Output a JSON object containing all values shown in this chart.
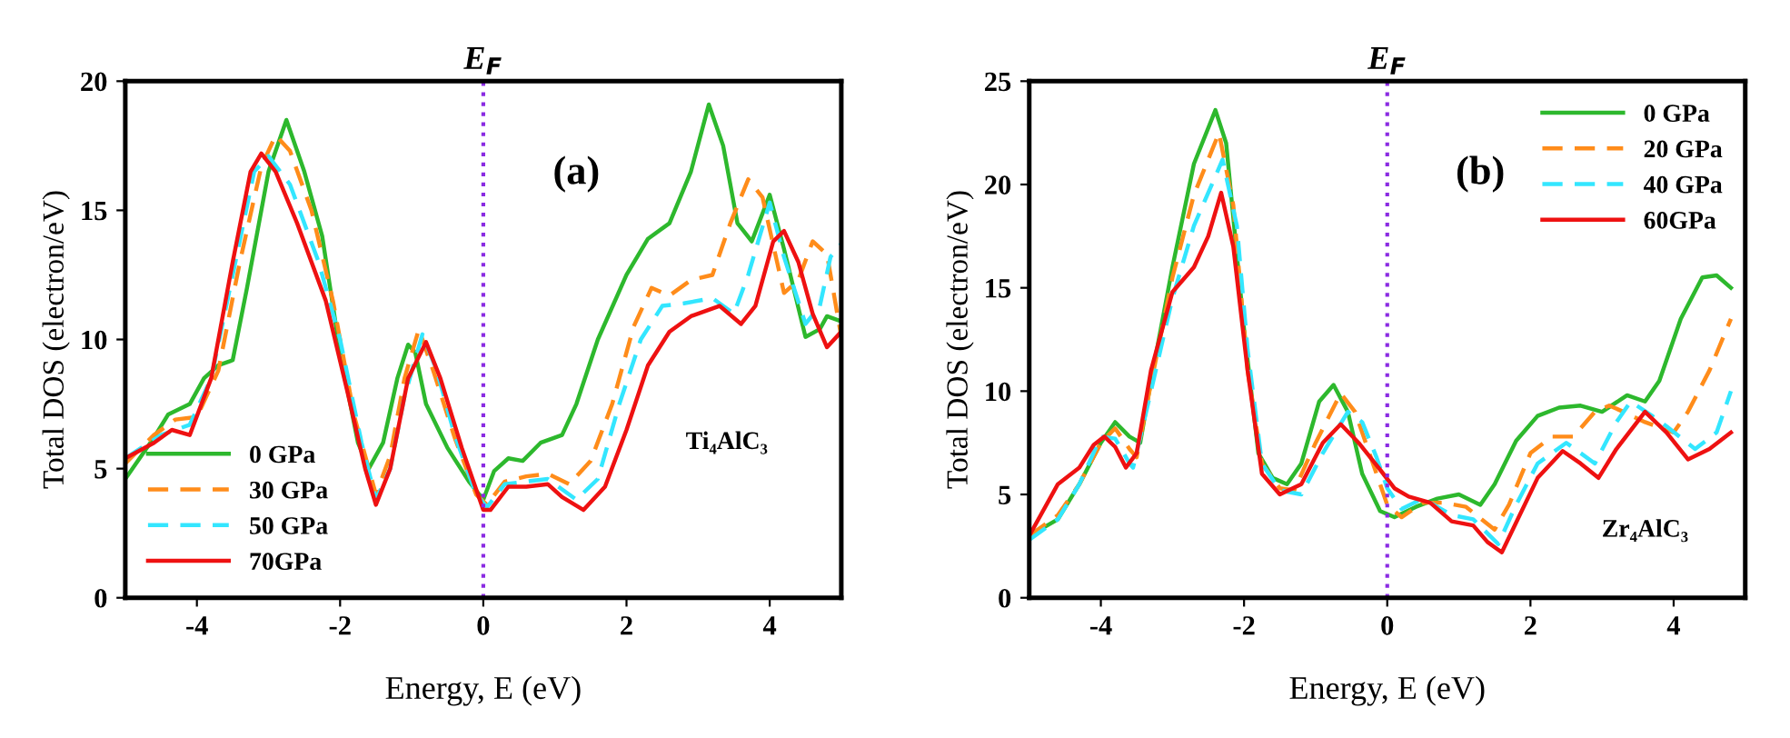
{
  "chart_data": [
    {
      "type": "line",
      "xlabel": "Energy, E (eV)",
      "ylabel": "Total DOS (electron/eV)",
      "xlim": [
        -5,
        5
      ],
      "xticks": [
        -4,
        -2,
        0,
        2,
        4
      ],
      "ylim": [
        0,
        20
      ],
      "yticks": [
        0,
        5,
        10,
        15,
        20
      ],
      "grid": false,
      "legend": "bottom left",
      "annotations": [
        "(a)",
        "Ti₄AlC₃"
      ],
      "ref_lines": [
        {
          "axis": "x",
          "value": 0,
          "label": "E$_{F}$",
          "color": "#8a2be2",
          "line_style": "dotted"
        }
      ],
      "series": [
        {
          "name": "0 GPa",
          "color": "#2db82d",
          "line_style": "solid",
          "x": [
            -5,
            -4.6,
            -4.4,
            -4.1,
            -3.9,
            -3.7,
            -3.5,
            -3.3,
            -3.0,
            -2.75,
            -2.5,
            -2.25,
            -2.0,
            -1.75,
            -1.6,
            -1.4,
            -1.2,
            -1.05,
            -0.95,
            -0.8,
            -0.5,
            -0.2,
            0,
            0.15,
            0.35,
            0.55,
            0.8,
            1.1,
            1.3,
            1.6,
            2.0,
            2.3,
            2.6,
            2.9,
            3.15,
            3.35,
            3.55,
            3.75,
            4.0,
            4.2,
            4.5,
            4.7,
            4.8,
            5
          ],
          "values": [
            4.6,
            6.2,
            7.1,
            7.5,
            8.5,
            9.0,
            9.2,
            12,
            16.5,
            18.5,
            16.5,
            14,
            9.5,
            6.0,
            5.0,
            6.0,
            8.5,
            9.8,
            9.5,
            7.5,
            5.8,
            4.5,
            3.8,
            4.9,
            5.4,
            5.3,
            6.0,
            6.3,
            7.5,
            10,
            12.5,
            13.9,
            14.5,
            16.5,
            19.1,
            17.5,
            14.5,
            13.8,
            15.6,
            13.5,
            10.1,
            10.4,
            10.9,
            10.7
          ]
        },
        {
          "name": "30 GPa",
          "color": "#ff8c1a",
          "line_style": "dashed",
          "x": [
            -5,
            -4.6,
            -4.3,
            -4.0,
            -3.7,
            -3.4,
            -3.1,
            -2.9,
            -2.7,
            -2.4,
            -2.1,
            -1.8,
            -1.5,
            -1.3,
            -1.1,
            -0.9,
            -0.7,
            -0.4,
            -0.1,
            0.05,
            0.3,
            0.6,
            0.9,
            1.2,
            1.5,
            1.8,
            2.1,
            2.35,
            2.6,
            2.9,
            3.2,
            3.45,
            3.7,
            3.9,
            4.2,
            4.4,
            4.6,
            4.8,
            5
          ],
          "values": [
            5.2,
            6.3,
            6.9,
            7.0,
            8.8,
            13,
            16.7,
            17.9,
            17.3,
            15,
            11.5,
            7,
            4.0,
            5.5,
            8.5,
            10.4,
            8.8,
            6.2,
            4.0,
            3.6,
            4.5,
            4.7,
            4.8,
            4.4,
            5.3,
            7.5,
            10.5,
            12.0,
            11.7,
            12.3,
            12.5,
            14.5,
            16.2,
            15.5,
            11.8,
            12.3,
            13.8,
            13.3,
            10.1
          ]
        },
        {
          "name": "50 GPa",
          "color": "#33e6ff",
          "line_style": "dashed",
          "x": [
            -5,
            -4.5,
            -4.1,
            -3.8,
            -3.5,
            -3.2,
            -3.0,
            -2.7,
            -2.3,
            -2.0,
            -1.7,
            -1.5,
            -1.3,
            -1.1,
            -0.85,
            -0.65,
            -0.4,
            -0.1,
            0.05,
            0.3,
            0.6,
            0.9,
            1.3,
            1.6,
            1.9,
            2.2,
            2.5,
            2.8,
            3.2,
            3.5,
            3.7,
            4.0,
            4.2,
            4.5,
            4.7,
            4.85,
            5
          ],
          "values": [
            5.4,
            6.3,
            6.7,
            8.5,
            12.5,
            16.5,
            17.1,
            16,
            13,
            10,
            6,
            3.8,
            5,
            7.8,
            10.2,
            8.8,
            6.3,
            4.0,
            3.5,
            4.4,
            4.5,
            4.6,
            3.8,
            4.6,
            7.5,
            10,
            11.3,
            11.4,
            11.6,
            11.0,
            12.5,
            15.3,
            13.2,
            10.6,
            11.3,
            13.2,
            13.7
          ]
        },
        {
          "name": "70GPa",
          "color": "#ee1111",
          "line_style": "solid",
          "x": [
            -5,
            -4.6,
            -4.35,
            -4.1,
            -3.8,
            -3.5,
            -3.25,
            -3.1,
            -2.9,
            -2.6,
            -2.2,
            -1.9,
            -1.65,
            -1.5,
            -1.3,
            -1.05,
            -0.8,
            -0.6,
            -0.3,
            0,
            0.1,
            0.35,
            0.6,
            0.9,
            1.1,
            1.4,
            1.7,
            2.0,
            2.3,
            2.6,
            2.9,
            3.3,
            3.6,
            3.8,
            4.05,
            4.2,
            4.4,
            4.6,
            4.8,
            5
          ],
          "values": [
            5.4,
            6.0,
            6.5,
            6.3,
            8.5,
            13,
            16.5,
            17.2,
            16.5,
            14.5,
            11.5,
            8,
            5,
            3.6,
            5,
            8.5,
            9.9,
            8.5,
            5.8,
            3.4,
            3.4,
            4.3,
            4.3,
            4.4,
            3.9,
            3.4,
            4.3,
            6.5,
            9.0,
            10.3,
            10.9,
            11.3,
            10.6,
            11.3,
            13.8,
            14.2,
            13,
            11,
            9.7,
            10.3
          ]
        }
      ]
    },
    {
      "type": "line",
      "xlabel": "Energy, E (eV)",
      "ylabel": "Total DOS (electron/eV)",
      "xlim": [
        -5,
        5
      ],
      "xticks": [
        -4,
        -2,
        0,
        2,
        4
      ],
      "ylim": [
        0,
        25
      ],
      "yticks": [
        0,
        5,
        10,
        15,
        20,
        25
      ],
      "grid": false,
      "legend": "top right",
      "annotations": [
        "(b)",
        "Zr₄AlC₃"
      ],
      "ref_lines": [
        {
          "axis": "x",
          "value": 0,
          "label": "E$_{F}$",
          "color": "#8a2be2",
          "line_style": "dotted"
        }
      ],
      "series": [
        {
          "name": "0 GPa",
          "color": "#2db82d",
          "line_style": "solid",
          "x": [
            -5,
            -4.6,
            -4.3,
            -4.0,
            -3.8,
            -3.6,
            -3.45,
            -3.3,
            -3.0,
            -2.7,
            -2.4,
            -2.25,
            -2.0,
            -1.8,
            -1.6,
            -1.4,
            -1.2,
            -0.95,
            -0.75,
            -0.55,
            -0.35,
            -0.1,
            0.1,
            0.4,
            0.7,
            1.0,
            1.3,
            1.5,
            1.8,
            2.1,
            2.4,
            2.7,
            3.0,
            3.35,
            3.6,
            3.8,
            4.1,
            4.4,
            4.6,
            4.8
          ],
          "values": [
            3.0,
            3.8,
            5.5,
            7.5,
            8.5,
            7.8,
            7.5,
            10.5,
            16,
            21,
            23.6,
            22,
            13,
            7,
            5.8,
            5.5,
            6.5,
            9.5,
            10.3,
            9.0,
            6,
            4.2,
            3.9,
            4.4,
            4.8,
            5.0,
            4.5,
            5.5,
            7.6,
            8.8,
            9.2,
            9.3,
            9.0,
            9.8,
            9.5,
            10.5,
            13.5,
            15.5,
            15.6,
            15.0
          ]
        },
        {
          "name": "20 GPa",
          "color": "#ff8c1a",
          "line_style": "dashed",
          "x": [
            -5,
            -4.6,
            -4.3,
            -4.0,
            -3.8,
            -3.6,
            -3.5,
            -3.35,
            -3.0,
            -2.7,
            -2.35,
            -2.15,
            -1.95,
            -1.75,
            -1.5,
            -1.3,
            -1.0,
            -0.65,
            -0.45,
            -0.2,
            0.0,
            0.2,
            0.5,
            0.8,
            1.1,
            1.5,
            1.7,
            2.0,
            2.3,
            2.6,
            2.9,
            3.1,
            3.3,
            3.6,
            4.0,
            4.2,
            4.5,
            4.8
          ],
          "values": [
            3.0,
            4.0,
            5.5,
            7.5,
            8.2,
            7.2,
            6.8,
            9.5,
            15.5,
            19.5,
            22.5,
            19,
            11,
            6.5,
            5.3,
            5.2,
            7.5,
            9.9,
            9.0,
            6.5,
            4.5,
            3.9,
            4.6,
            4.6,
            4.4,
            3.3,
            4.5,
            7.0,
            7.8,
            7.8,
            9,
            9.3,
            9.0,
            8.5,
            8.0,
            9,
            11,
            13.5
          ]
        },
        {
          "name": "40 GPa",
          "color": "#33e6ff",
          "line_style": "dashed",
          "x": [
            -5,
            -4.6,
            -4.3,
            -4.0,
            -3.8,
            -3.6,
            -3.55,
            -3.4,
            -3.0,
            -2.7,
            -2.3,
            -2.1,
            -1.95,
            -1.75,
            -1.5,
            -1.2,
            -0.9,
            -0.55,
            -0.35,
            -0.15,
            0.0,
            0.2,
            0.5,
            0.9,
            1.2,
            1.55,
            1.8,
            2.1,
            2.5,
            2.9,
            3.2,
            3.4,
            3.7,
            3.9,
            4.3,
            4.6,
            4.8
          ],
          "values": [
            2.8,
            3.8,
            5.5,
            7.8,
            7.7,
            6.5,
            6.3,
            8.5,
            14.5,
            18,
            21.2,
            18,
            12,
            6.5,
            5.2,
            5.0,
            7.0,
            9.0,
            8.5,
            6.8,
            5.3,
            4.3,
            4.8,
            4.0,
            3.8,
            2.6,
            4.5,
            6.5,
            7.5,
            6.5,
            8.5,
            9.5,
            8.8,
            8.3,
            7.2,
            8.0,
            10
          ]
        },
        {
          "name": "60GPa",
          "color": "#ee1111",
          "line_style": "solid",
          "x": [
            -5,
            -4.6,
            -4.3,
            -4.1,
            -3.95,
            -3.8,
            -3.65,
            -3.5,
            -3.3,
            -3.0,
            -2.7,
            -2.5,
            -2.32,
            -2.15,
            -1.95,
            -1.75,
            -1.5,
            -1.2,
            -0.9,
            -0.65,
            -0.4,
            -0.1,
            0.1,
            0.3,
            0.6,
            0.9,
            1.2,
            1.4,
            1.6,
            1.85,
            2.1,
            2.45,
            2.7,
            2.95,
            3.2,
            3.6,
            3.9,
            4.2,
            4.5,
            4.8
          ],
          "values": [
            3.0,
            5.5,
            6.3,
            7.4,
            7.8,
            7.3,
            6.3,
            7.0,
            11,
            14.8,
            16,
            17.5,
            19.6,
            17,
            11,
            6,
            5.0,
            5.5,
            7.5,
            8.4,
            7.5,
            6.2,
            5.3,
            4.9,
            4.6,
            3.7,
            3.5,
            2.7,
            2.2,
            4,
            5.8,
            7.1,
            6.5,
            5.8,
            7.2,
            9.0,
            8.0,
            6.7,
            7.2,
            8.0
          ]
        }
      ]
    }
  ]
}
